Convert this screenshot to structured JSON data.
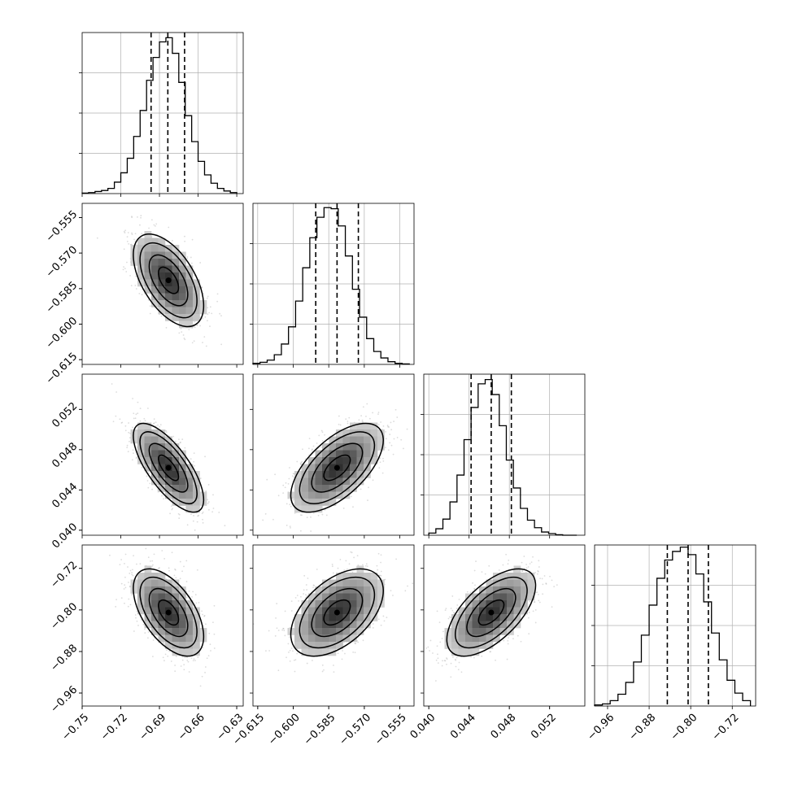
{
  "chart_data": {
    "type": "corner",
    "parameters": 4,
    "quantile_lines": "dashed",
    "grid": true,
    "colors": {
      "background": "#ffffff",
      "axes": "#000000",
      "grid": "#b0b0b0",
      "scatter": "#9a9a9a",
      "density": "#000000",
      "text": "#000000"
    },
    "parameter_ranges": [
      [
        -0.75,
        -0.625
      ],
      [
        -0.617,
        -0.549
      ],
      [
        0.0395,
        0.0555
      ],
      [
        -0.985,
        -0.675
      ]
    ],
    "bottom_tick_labels": [
      [
        "−0.75",
        "−0.72",
        "−0.69",
        "−0.66",
        "−0.63"
      ],
      [
        "−0.615",
        "−0.600",
        "−0.585",
        "−0.570",
        "−0.555"
      ],
      [
        "0.040",
        "0.044",
        "0.048",
        "0.052"
      ],
      [
        "−0.96",
        "−0.88",
        "−0.80",
        "−0.72"
      ]
    ],
    "bottom_tick_values": [
      [
        -0.75,
        -0.72,
        -0.69,
        -0.66,
        -0.63
      ],
      [
        -0.615,
        -0.6,
        -0.585,
        -0.57,
        -0.555
      ],
      [
        0.04,
        0.044,
        0.048,
        0.052
      ],
      [
        -0.96,
        -0.88,
        -0.8,
        -0.72
      ]
    ],
    "left_tick_labels": [
      [],
      [
        "−0.555",
        "−0.570",
        "−0.585",
        "−0.600",
        "−0.615"
      ],
      [
        "0.052",
        "0.048",
        "0.044",
        "0.040"
      ],
      [
        "−0.72",
        "−0.80",
        "−0.88",
        "−0.96"
      ]
    ],
    "left_tick_values": [
      [],
      [
        -0.555,
        -0.57,
        -0.585,
        -0.6,
        -0.615
      ],
      [
        0.052,
        0.048,
        0.044,
        0.04
      ],
      [
        -0.72,
        -0.8,
        -0.88,
        -0.96
      ]
    ],
    "histograms": [
      {
        "parameter": 1,
        "bin_edges": [
          -0.75,
          -0.745,
          -0.74,
          -0.735,
          -0.73,
          -0.725,
          -0.72,
          -0.715,
          -0.71,
          -0.705,
          -0.7,
          -0.695,
          -0.69,
          -0.685,
          -0.68,
          -0.675,
          -0.67,
          -0.665,
          -0.66,
          -0.655,
          -0.65,
          -0.645,
          -0.64,
          -0.635,
          -0.63
        ],
        "counts": [
          1,
          2,
          4,
          6,
          10,
          22,
          40,
          68,
          110,
          160,
          218,
          262,
          292,
          300,
          270,
          214,
          150,
          100,
          62,
          36,
          20,
          10,
          5,
          2
        ],
        "quantiles": [
          -0.6965,
          -0.6835,
          -0.6705
        ],
        "ylim": [
          0,
          310
        ]
      },
      {
        "parameter": 2,
        "bin_edges": [
          -0.617,
          -0.614,
          -0.611,
          -0.608,
          -0.605,
          -0.602,
          -0.599,
          -0.596,
          -0.593,
          -0.59,
          -0.587,
          -0.584,
          -0.581,
          -0.578,
          -0.575,
          -0.572,
          -0.569,
          -0.566,
          -0.563,
          -0.56,
          -0.557,
          -0.554,
          -0.551
        ],
        "counts": [
          2,
          4,
          8,
          18,
          38,
          70,
          118,
          180,
          236,
          274,
          292,
          290,
          258,
          202,
          140,
          88,
          48,
          24,
          12,
          5,
          2,
          1
        ],
        "quantiles": [
          -0.5905,
          -0.5815,
          -0.5725
        ],
        "ylim": [
          0,
          300
        ]
      },
      {
        "parameter": 3,
        "bin_edges": [
          0.04,
          0.0407,
          0.0414,
          0.0421,
          0.0428,
          0.0435,
          0.0442,
          0.0449,
          0.0456,
          0.0463,
          0.047,
          0.0477,
          0.0484,
          0.0491,
          0.0498,
          0.0505,
          0.0512,
          0.0519,
          0.0526,
          0.0533,
          0.054,
          0.0547
        ],
        "counts": [
          4,
          12,
          30,
          62,
          112,
          178,
          238,
          282,
          290,
          262,
          204,
          140,
          88,
          50,
          28,
          14,
          6,
          3,
          1,
          0,
          0
        ],
        "quantiles": [
          0.0442,
          0.0462,
          0.0482
        ],
        "ylim": [
          0,
          300
        ]
      },
      {
        "parameter": 4,
        "bin_edges": [
          -0.985,
          -0.97,
          -0.955,
          -0.94,
          -0.925,
          -0.91,
          -0.895,
          -0.88,
          -0.865,
          -0.85,
          -0.835,
          -0.82,
          -0.805,
          -0.79,
          -0.775,
          -0.76,
          -0.745,
          -0.73,
          -0.715,
          -0.7,
          -0.685
        ],
        "counts": [
          2,
          4,
          10,
          22,
          44,
          82,
          132,
          188,
          238,
          272,
          288,
          296,
          282,
          246,
          194,
          136,
          86,
          48,
          24,
          10
        ],
        "quantiles": [
          -0.845,
          -0.805,
          -0.766
        ],
        "ylim": [
          0,
          300
        ]
      }
    ],
    "pair_densities": [
      {
        "x_parameter": 1,
        "y_parameter": 2,
        "center": [
          -0.683,
          -0.5815
        ],
        "sigma": [
          0.013,
          0.0093
        ],
        "correlation": -0.55
      },
      {
        "x_parameter": 1,
        "y_parameter": 3,
        "center": [
          -0.683,
          0.0462
        ],
        "sigma": [
          0.013,
          0.0021
        ],
        "correlation": -0.72
      },
      {
        "x_parameter": 2,
        "y_parameter": 3,
        "center": [
          -0.5815,
          0.0462
        ],
        "sigma": [
          0.0093,
          0.0021
        ],
        "correlation": 0.62
      },
      {
        "x_parameter": 1,
        "y_parameter": 4,
        "center": [
          -0.683,
          -0.805
        ],
        "sigma": [
          0.013,
          0.04
        ],
        "correlation": -0.55
      },
      {
        "x_parameter": 2,
        "y_parameter": 4,
        "center": [
          -0.5815,
          -0.805
        ],
        "sigma": [
          0.0093,
          0.04
        ],
        "correlation": 0.5
      },
      {
        "x_parameter": 3,
        "y_parameter": 4,
        "center": [
          0.0462,
          -0.805
        ],
        "sigma": [
          0.0021,
          0.04
        ],
        "correlation": 0.62
      }
    ]
  }
}
